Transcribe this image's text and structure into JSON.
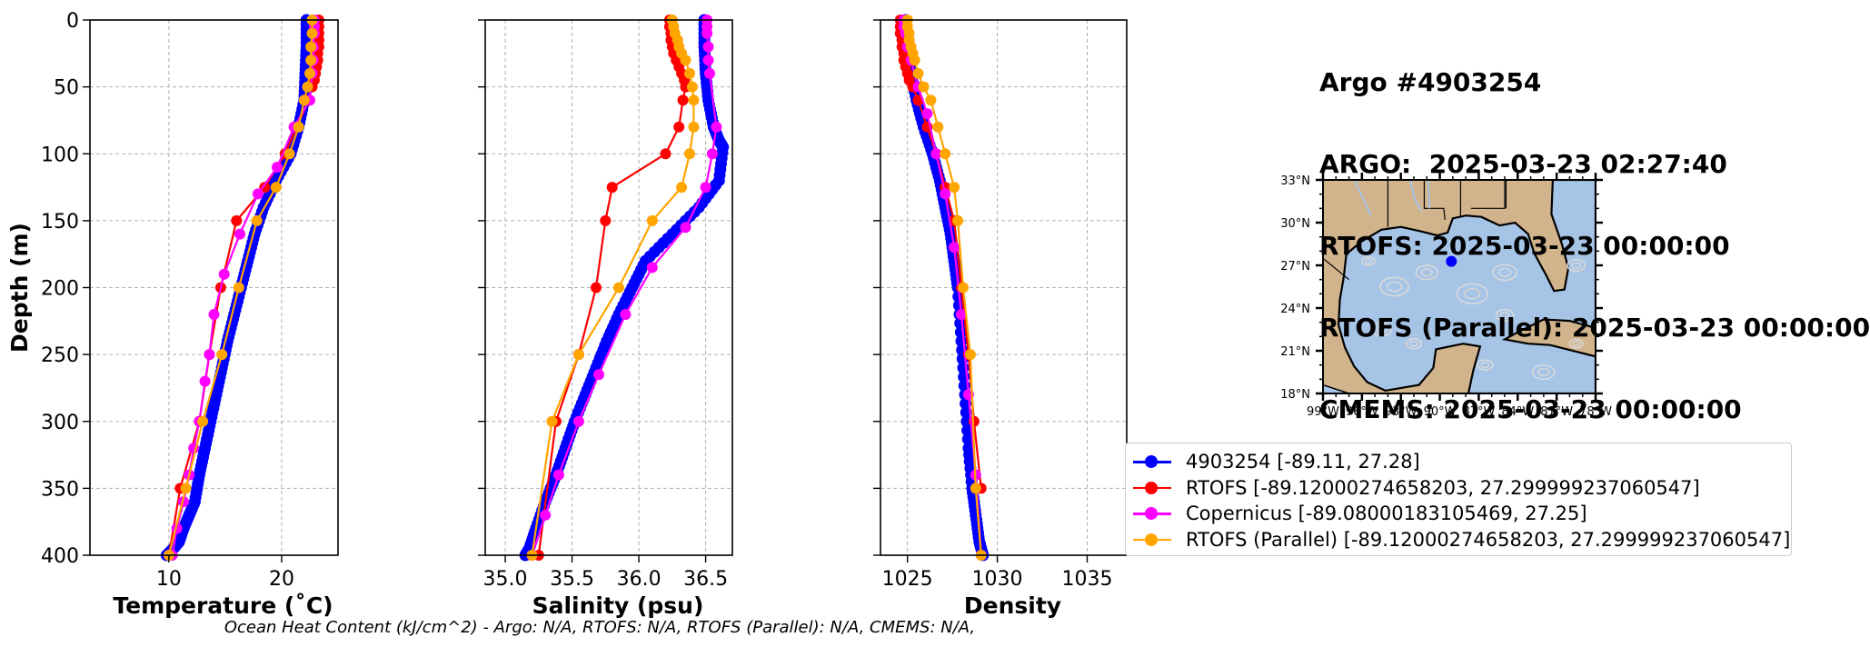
{
  "header": {
    "lines": [
      "Argo #4903254",
      "ARGO:  2025-03-23 02:27:40",
      "RTOFS: 2025-03-23 00:00:00",
      "RTOFS (Parallel): 2025-03-23 00:00:00",
      "CMEMS: 2025-03-23 00:00:00"
    ]
  },
  "footer": "Ocean Heat Content (kJ/cm^2) - Argo: N/A,  RTOFS: N/A,  RTOFS (Parallel): N/A,  CMEMS: N/A,",
  "colors": {
    "argo": "#0000ff",
    "rtofs": "#ff0000",
    "copernicus": "#ff00ff",
    "parallel": "#ffa500",
    "land": "#d2b48c",
    "ocean": "#a6c4e6",
    "stream": "#d9d9d9"
  },
  "legend": [
    {
      "label": "4903254 [-89.11, 27.28]",
      "color": "#0000ff"
    },
    {
      "label": "RTOFS [-89.12000274658203, 27.299999237060547]",
      "color": "#ff0000"
    },
    {
      "label": "Copernicus [-89.08000183105469, 27.25]",
      "color": "#ff00ff"
    },
    {
      "label": "RTOFS (Parallel) [-89.12000274658203, 27.299999237060547]",
      "color": "#ffa500"
    }
  ],
  "map": {
    "lat_ticks": [
      "33°N",
      "30°N",
      "27°N",
      "24°N",
      "21°N",
      "18°N"
    ],
    "lon_ticks": [
      "99°W",
      "96°W",
      "93°W",
      "90°W",
      "87°W",
      "84°W",
      "81°W",
      "78°W"
    ],
    "lon_range": [
      -99,
      -78
    ],
    "lat_range": [
      18,
      33
    ],
    "float_position": {
      "lon": -89.11,
      "lat": 27.28
    }
  },
  "chart_data": [
    {
      "type": "line",
      "xlabel": "Temperature (˚C)",
      "ylabel": "Depth (m)",
      "xlim": [
        3,
        25
      ],
      "ylim": [
        400,
        0
      ],
      "xticks": [
        10,
        20
      ],
      "yticks": [
        0,
        50,
        100,
        150,
        200,
        250,
        300,
        350,
        400
      ],
      "series": [
        {
          "name": "4903254",
          "color": "#0000ff",
          "dense": true,
          "x": [
            22.2,
            22.2,
            22.1,
            22.0,
            21.5,
            20.8,
            19.5,
            18.4,
            17.6,
            17.0,
            16.4,
            15.8,
            15.2,
            14.7,
            14.2,
            13.7,
            13.2,
            12.7,
            12.3,
            11.8,
            11.3,
            10.9,
            10.4,
            9.8
          ],
          "y": [
            0,
            20,
            40,
            60,
            80,
            100,
            120,
            140,
            160,
            180,
            200,
            220,
            240,
            260,
            280,
            300,
            320,
            340,
            360,
            370,
            380,
            390,
            395,
            400
          ]
        },
        {
          "name": "RTOFS",
          "color": "#ff0000",
          "x": [
            23.3,
            23.3,
            23.3,
            23.3,
            23.3,
            23.2,
            23.2,
            23.1,
            23.0,
            22.9,
            22.7,
            22.4,
            20.3,
            18.5,
            16.0,
            14.6,
            13.6,
            12.7,
            11.0,
            10.0
          ],
          "y": [
            0,
            5,
            10,
            15,
            20,
            25,
            30,
            35,
            40,
            45,
            50,
            60,
            100,
            125,
            150,
            200,
            250,
            300,
            350,
            400
          ]
        },
        {
          "name": "Copernicus",
          "color": "#ff00ff",
          "x": [
            22.9,
            22.9,
            22.9,
            22.8,
            22.8,
            22.7,
            22.5,
            21.1,
            19.6,
            17.9,
            16.3,
            14.9,
            14.0,
            13.6,
            13.2,
            12.7,
            12.2,
            11.8,
            11.3,
            10.7,
            10.3
          ],
          "y": [
            0,
            5,
            10,
            20,
            30,
            40,
            60,
            80,
            110,
            130,
            160,
            190,
            220,
            250,
            270,
            300,
            320,
            340,
            360,
            380,
            400
          ]
        },
        {
          "name": "RTOFS (Parallel)",
          "color": "#ffa500",
          "x": [
            22.7,
            22.7,
            22.6,
            22.6,
            22.5,
            22.3,
            22.0,
            21.5,
            20.7,
            19.5,
            17.8,
            16.2,
            14.7,
            13.0,
            11.5,
            10.0
          ],
          "y": [
            0,
            10,
            20,
            30,
            40,
            50,
            60,
            80,
            100,
            125,
            150,
            200,
            250,
            300,
            350,
            400
          ]
        }
      ]
    },
    {
      "type": "line",
      "xlabel": "Salinity (psu)",
      "xlim": [
        34.85,
        36.7
      ],
      "ylim": [
        400,
        0
      ],
      "xticks": [
        35.0,
        35.5,
        36.0,
        36.5
      ],
      "xticklabels": [
        "35.0",
        "35.5",
        "36.0",
        "36.5"
      ],
      "series": [
        {
          "name": "4903254",
          "color": "#0000ff",
          "dense": true,
          "x": [
            36.49,
            36.49,
            36.5,
            36.52,
            36.56,
            36.6,
            36.63,
            36.6,
            36.45,
            36.25,
            36.05,
            35.95,
            35.85,
            35.76,
            35.68,
            35.6,
            35.52,
            35.45,
            35.38,
            35.3,
            35.23,
            35.18,
            35.15
          ],
          "y": [
            0,
            20,
            40,
            60,
            80,
            90,
            95,
            120,
            140,
            160,
            180,
            200,
            220,
            240,
            260,
            280,
            300,
            320,
            340,
            360,
            380,
            395,
            400
          ]
        },
        {
          "name": "RTOFS",
          "color": "#ff0000",
          "x": [
            36.23,
            36.23,
            36.24,
            36.24,
            36.25,
            36.26,
            36.28,
            36.3,
            36.32,
            36.34,
            36.35,
            36.33,
            36.3,
            36.2,
            35.8,
            35.75,
            35.68,
            35.55,
            35.38,
            35.25
          ],
          "y": [
            0,
            5,
            10,
            15,
            20,
            25,
            30,
            35,
            40,
            45,
            50,
            60,
            80,
            100,
            125,
            150,
            200,
            250,
            300,
            400
          ]
        },
        {
          "name": "Copernicus",
          "color": "#ff00ff",
          "x": [
            36.51,
            36.51,
            36.51,
            36.52,
            36.52,
            36.53,
            36.58,
            36.55,
            36.5,
            36.35,
            36.1,
            35.9,
            35.7,
            35.55,
            35.4,
            35.3,
            35.2
          ],
          "y": [
            0,
            5,
            10,
            20,
            30,
            40,
            80,
            100,
            125,
            155,
            185,
            220,
            265,
            300,
            340,
            370,
            400
          ]
        },
        {
          "name": "RTOFS (Parallel)",
          "color": "#ffa500",
          "x": [
            36.25,
            36.26,
            36.27,
            36.29,
            36.3,
            36.32,
            36.35,
            36.38,
            36.4,
            36.41,
            36.41,
            36.38,
            36.32,
            36.1,
            35.85,
            35.55,
            35.35,
            35.2
          ],
          "y": [
            0,
            5,
            10,
            15,
            20,
            25,
            30,
            40,
            50,
            60,
            80,
            100,
            125,
            150,
            200,
            250,
            300,
            400
          ]
        }
      ]
    },
    {
      "type": "line",
      "xlabel": "Density",
      "xlim": [
        1023.5,
        1037.2
      ],
      "ylim": [
        400,
        0
      ],
      "xticks": [
        1025,
        1030,
        1035
      ],
      "series": [
        {
          "name": "4903254",
          "color": "#0000ff",
          "dense": true,
          "x": [
            1024.9,
            1025.0,
            1025.2,
            1025.5,
            1025.9,
            1026.4,
            1026.8,
            1027.1,
            1027.4,
            1027.6,
            1027.8,
            1028.0,
            1028.2,
            1028.4,
            1028.6,
            1028.8,
            1029.0,
            1029.2
          ],
          "y": [
            0,
            20,
            40,
            60,
            80,
            100,
            120,
            140,
            160,
            180,
            200,
            240,
            280,
            320,
            350,
            370,
            390,
            400
          ]
        },
        {
          "name": "RTOFS",
          "color": "#ff0000",
          "x": [
            1024.6,
            1024.6,
            1024.6,
            1024.7,
            1024.7,
            1024.8,
            1024.8,
            1024.9,
            1025.0,
            1025.1,
            1025.3,
            1025.6,
            1026.1,
            1026.6,
            1027.1,
            1027.6,
            1028.0,
            1028.4,
            1028.7,
            1029.1
          ],
          "y": [
            0,
            5,
            10,
            15,
            20,
            25,
            30,
            35,
            40,
            45,
            50,
            60,
            80,
            100,
            125,
            150,
            200,
            250,
            300,
            350
          ]
        },
        {
          "name": "Copernicus",
          "color": "#ff00ff",
          "x": [
            1024.8,
            1024.8,
            1024.9,
            1025.0,
            1025.2,
            1025.6,
            1026.1,
            1026.6,
            1027.1,
            1027.6,
            1028.0,
            1028.4,
            1028.8,
            1029.1
          ],
          "y": [
            0,
            5,
            10,
            20,
            30,
            50,
            70,
            100,
            130,
            170,
            220,
            280,
            340,
            400
          ]
        },
        {
          "name": "RTOFS (Parallel)",
          "color": "#ffa500",
          "x": [
            1025.0,
            1025.0,
            1025.1,
            1025.1,
            1025.2,
            1025.3,
            1025.4,
            1025.6,
            1025.9,
            1026.3,
            1026.7,
            1027.1,
            1027.6,
            1027.8,
            1028.1,
            1028.5,
            1028.8,
            1029.1
          ],
          "y": [
            0,
            5,
            10,
            15,
            20,
            25,
            30,
            40,
            50,
            60,
            80,
            100,
            125,
            150,
            200,
            250,
            350,
            400
          ]
        }
      ]
    }
  ]
}
